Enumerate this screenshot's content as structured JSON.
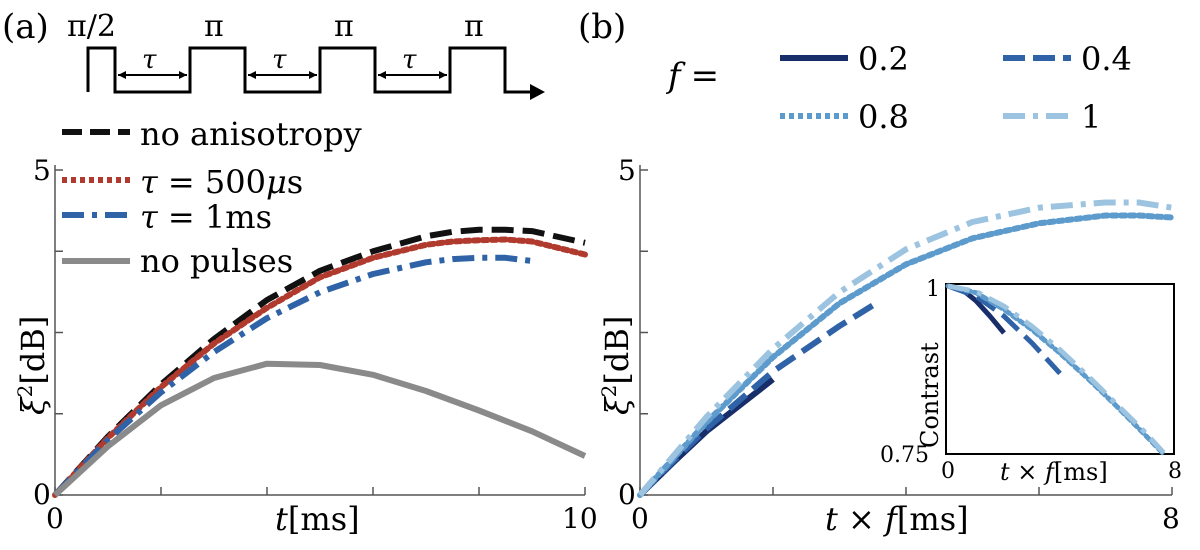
{
  "colors": {
    "black": "#111111",
    "red": "#b03a2e",
    "mid_blue": "#2f62a6",
    "gray": "#8a8a8a",
    "dark_navy": "#172e6a",
    "light_blue": "#9cc4e0",
    "med_light_blue": "#5d9bcc"
  },
  "panel_a": {
    "panel_label": "(a)",
    "pulse_sequence": {
      "labels": [
        "π/2",
        "π",
        "π",
        "π"
      ],
      "tau_labels": [
        "τ",
        "τ",
        "τ"
      ]
    }
  },
  "panel_b": {
    "panel_label": "(b)",
    "legend_prefix": "f =",
    "legend_title_parts": [
      "f",
      "="
    ]
  },
  "chart_data": [
    {
      "id": "panel_a_chart",
      "type": "line",
      "title": "",
      "xlabel": "t[ms]",
      "xlabel_parts": [
        "t",
        "[ms]"
      ],
      "ylabel": "ξ²[dB]",
      "ylabel_parts": [
        "ξ",
        "2",
        "[dB]"
      ],
      "xlim": [
        0,
        10
      ],
      "ylim": [
        0,
        5
      ],
      "xtick_labels": [
        "0",
        "10"
      ],
      "ytick_labels": [
        "0",
        "5"
      ],
      "legend_position": "top-left",
      "series": [
        {
          "name": "no anisotropy",
          "label_text": "no anisotropy",
          "color": "#111111",
          "dash": "long",
          "x": [
            0,
            1,
            2,
            3,
            4,
            5,
            6,
            7,
            7.5,
            8,
            8.5,
            9,
            10
          ],
          "y": [
            0,
            0.9,
            1.7,
            2.4,
            3.0,
            3.45,
            3.75,
            3.98,
            4.05,
            4.08,
            4.08,
            4.06,
            3.88
          ]
        },
        {
          "name": "τ = 500μs",
          "label_parts": [
            "τ",
            " = 500",
            "μ",
            "s"
          ],
          "color": "#b03a2e",
          "dash": "dot",
          "x": [
            0,
            1,
            2,
            3,
            4,
            5,
            6,
            7,
            7.5,
            8,
            8.5,
            9,
            10
          ],
          "y": [
            0,
            0.88,
            1.66,
            2.33,
            2.88,
            3.35,
            3.65,
            3.85,
            3.9,
            3.92,
            3.93,
            3.9,
            3.7
          ]
        },
        {
          "name": "τ = 1ms",
          "label_parts": [
            "τ",
            " = 1ms"
          ],
          "color": "#2f62a6",
          "dash": "dashdot",
          "x": [
            0,
            1,
            2,
            3,
            4,
            5,
            6,
            7,
            7.5,
            8,
            8.5,
            9
          ],
          "y": [
            0,
            0.85,
            1.58,
            2.2,
            2.72,
            3.12,
            3.4,
            3.58,
            3.63,
            3.65,
            3.65,
            3.6
          ]
        },
        {
          "name": "no pulses",
          "label_text": "no pulses",
          "color": "#8a8a8a",
          "dash": "solid",
          "x": [
            0,
            1,
            2,
            3,
            4,
            5,
            6,
            7,
            8,
            9,
            10
          ],
          "y": [
            0,
            0.75,
            1.38,
            1.8,
            2.02,
            2.0,
            1.85,
            1.6,
            1.3,
            0.98,
            0.6
          ]
        }
      ]
    },
    {
      "id": "panel_b_chart",
      "type": "line",
      "title": "",
      "xlabel": "t × f[ms]",
      "xlabel_parts": [
        "t",
        " × ",
        "f",
        "[ms]"
      ],
      "ylabel": "ξ²[dB]",
      "ylabel_parts": [
        "ξ",
        "2",
        "[dB]"
      ],
      "xlim": [
        0,
        8
      ],
      "ylim": [
        0,
        5
      ],
      "xtick_labels": [
        "0",
        "8"
      ],
      "ytick_labels": [
        "0",
        "5"
      ],
      "legend_position": "top",
      "series": [
        {
          "name": "0.2",
          "color": "#172e6a",
          "dash": "solid",
          "x": [
            0,
            0.5,
            1,
            1.5,
            2
          ],
          "y": [
            0,
            0.5,
            0.98,
            1.38,
            1.78
          ]
        },
        {
          "name": "0.4",
          "color": "#2f62a6",
          "dash": "long",
          "x": [
            0,
            0.5,
            1,
            2,
            3,
            3.6
          ],
          "y": [
            0,
            0.52,
            1.02,
            1.9,
            2.6,
            2.98
          ]
        },
        {
          "name": "0.8",
          "color": "#5d9bcc",
          "dash": "dot",
          "x": [
            0,
            1,
            2,
            3,
            4,
            5,
            6,
            7,
            7.5,
            8
          ],
          "y": [
            0,
            1.12,
            2.12,
            2.95,
            3.55,
            3.95,
            4.18,
            4.3,
            4.3,
            4.27
          ]
        },
        {
          "name": "1",
          "color": "#9cc4e0",
          "dash": "dashdot",
          "x": [
            0,
            1,
            2,
            3,
            4,
            5,
            6,
            7,
            7.5,
            8
          ],
          "y": [
            0,
            1.2,
            2.25,
            3.12,
            3.78,
            4.2,
            4.42,
            4.5,
            4.5,
            4.42
          ]
        }
      ],
      "inset": {
        "ylabel": "Contrast",
        "xlabel": "t × f[ms]",
        "xlabel_parts": [
          "t",
          " × ",
          "f",
          "[ms]"
        ],
        "xlim": [
          0,
          8
        ],
        "ylim": [
          0.75,
          1
        ],
        "xtick_labels": [
          "0",
          "8"
        ],
        "ytick_labels": [
          "0.75",
          "1"
        ],
        "series": [
          {
            "name": "0.2",
            "color": "#172e6a",
            "dash": "solid",
            "x": [
              0,
              0.5,
              1,
              1.5,
              2
            ],
            "y": [
              1.0,
              0.995,
              0.978,
              0.955,
              0.93
            ]
          },
          {
            "name": "0.4",
            "color": "#2f62a6",
            "dash": "long",
            "x": [
              0,
              1,
              2,
              3,
              4
            ],
            "y": [
              1.0,
              0.985,
              0.955,
              0.915,
              0.87
            ]
          },
          {
            "name": "0.8",
            "color": "#5d9bcc",
            "dash": "dot",
            "x": [
              0,
              1,
              2,
              3,
              4,
              5,
              6,
              7,
              7.7
            ],
            "y": [
              1.0,
              0.99,
              0.965,
              0.935,
              0.9,
              0.862,
              0.822,
              0.78,
              0.75
            ]
          },
          {
            "name": "1",
            "color": "#9cc4e0",
            "dash": "dashdot",
            "x": [
              0,
              1,
              2,
              3,
              4,
              5,
              6,
              7,
              7.7
            ],
            "y": [
              1.0,
              0.992,
              0.97,
              0.94,
              0.905,
              0.866,
              0.825,
              0.784,
              0.752
            ]
          }
        ]
      }
    }
  ]
}
